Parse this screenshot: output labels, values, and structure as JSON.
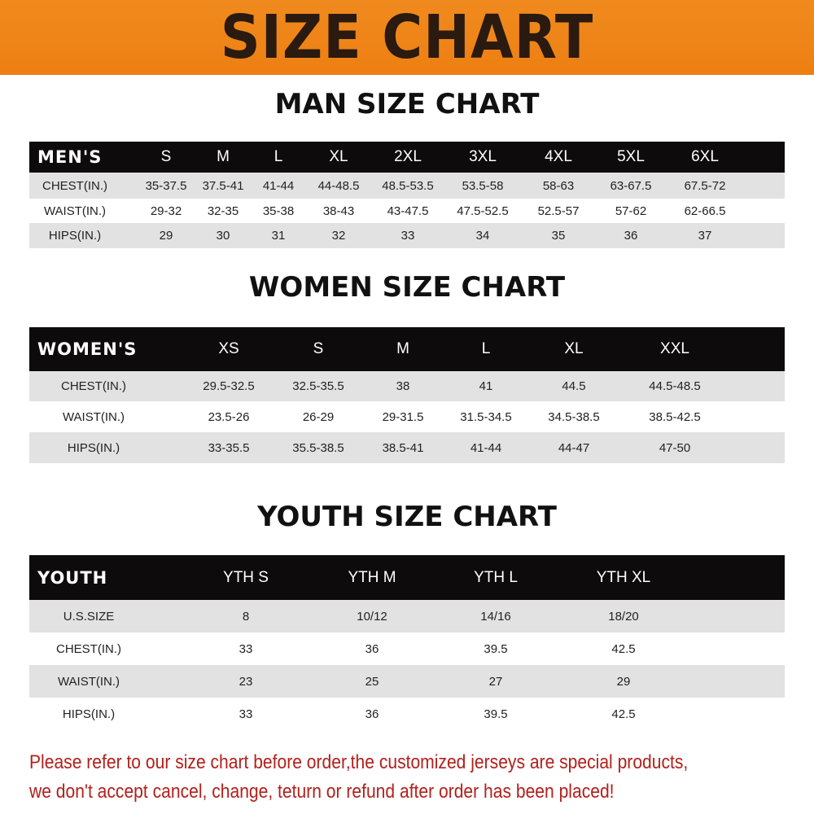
{
  "header": {
    "title": "SIZE CHART"
  },
  "men": {
    "title": "MAN SIZE CHART",
    "columns": [
      "MEN'S",
      "S",
      "M",
      "L",
      "XL",
      "2XL",
      "3XL",
      "4XL",
      "5XL",
      "6XL"
    ],
    "rows": [
      [
        "CHEST(IN.)",
        "35-37.5",
        "37.5-41",
        "41-44",
        "44-48.5",
        "48.5-53.5",
        "53.5-58",
        "58-63",
        "63-67.5",
        "67.5-72"
      ],
      [
        "WAIST(IN.)",
        "29-32",
        "32-35",
        "35-38",
        "38-43",
        "43-47.5",
        "47.5-52.5",
        "52.5-57",
        "57-62",
        "62-66.5"
      ],
      [
        "HIPS(IN.)",
        "29",
        "30",
        "31",
        "32",
        "33",
        "34",
        "35",
        "36",
        "37"
      ]
    ]
  },
  "women": {
    "title": "WOMEN SIZE CHART",
    "columns": [
      "WOMEN'S",
      "XS",
      "S",
      "M",
      "L",
      "XL",
      "XXL"
    ],
    "rows": [
      [
        "CHEST(IN.)",
        "29.5-32.5",
        "32.5-35.5",
        "38",
        "41",
        "44.5",
        "44.5-48.5"
      ],
      [
        "WAIST(IN.)",
        "23.5-26",
        "26-29",
        "29-31.5",
        "31.5-34.5",
        "34.5-38.5",
        "38.5-42.5"
      ],
      [
        "HIPS(IN.)",
        "33-35.5",
        "35.5-38.5",
        "38.5-41",
        "41-44",
        "44-47",
        "47-50"
      ]
    ]
  },
  "youth": {
    "title": "YOUTH SIZE CHART",
    "columns": [
      "YOUTH",
      "YTH S",
      "YTH M",
      "YTH L",
      "YTH XL"
    ],
    "rows": [
      [
        "U.S.SIZE",
        "8",
        "10/12",
        "14/16",
        "18/20"
      ],
      [
        "CHEST(IN.)",
        "33",
        "36",
        "39.5",
        "42.5"
      ],
      [
        "WAIST(IN.)",
        "23",
        "25",
        "27",
        "29"
      ],
      [
        "HIPS(IN.)",
        "33",
        "36",
        "39.5",
        "42.5"
      ]
    ]
  },
  "notice": {
    "line1": "Please refer to our size chart before order,the customized jerseys are special products,",
    "line2": "we don't accept cancel, change, teturn or refund after order has been placed!"
  }
}
